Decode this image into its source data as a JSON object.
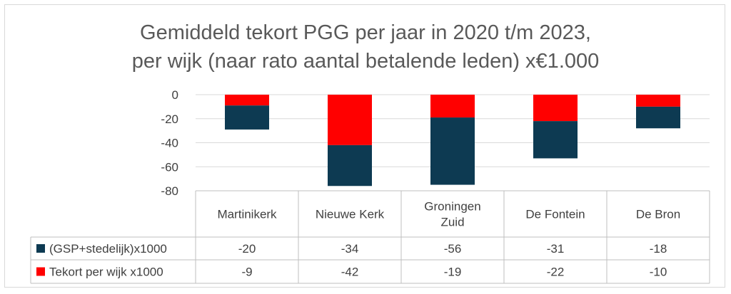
{
  "chart_data": {
    "type": "bar",
    "stacked": true,
    "title_lines": [
      "Gemiddeld tekort PGG per jaar in 2020 t/m 2023,",
      "per wijk (naar rato aantal betalende leden) x€1.000"
    ],
    "categories": [
      [
        "Martinikerk"
      ],
      [
        "Nieuwe Kerk"
      ],
      [
        "Groningen",
        "Zuid"
      ],
      [
        "De Fontein"
      ],
      [
        "De Bron"
      ]
    ],
    "series": [
      {
        "name": "(GSP+stedelijk)x1000",
        "color": "#0d3a52",
        "values": [
          -20,
          -34,
          -56,
          -31,
          -18
        ]
      },
      {
        "name": "Tekort per wijk x1000",
        "color": "#ff0000",
        "values": [
          -9,
          -42,
          -19,
          -22,
          -10
        ]
      }
    ],
    "yticks": [
      "0",
      "-20",
      "-40",
      "-60",
      "-80"
    ],
    "ylim": [
      -80,
      0
    ],
    "grid": true,
    "data_table": true
  }
}
